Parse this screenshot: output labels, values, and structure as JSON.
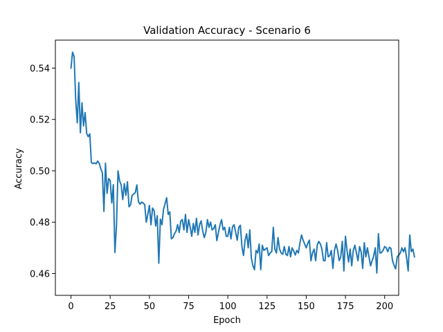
{
  "chart_data": {
    "type": "line",
    "title": "Validation Accuracy - Scenario 6",
    "xlabel": "Epoch",
    "ylabel": "Accuracy",
    "xlim": [
      -9.95,
      208.95
    ],
    "ylim": [
      0.4515,
      0.5509
    ],
    "xticks": [
      0,
      25,
      50,
      75,
      100,
      125,
      150,
      175,
      200
    ],
    "yticks": [
      0.46,
      0.48,
      0.5,
      0.52,
      0.54
    ],
    "ytick_labels": [
      "0.46",
      "0.48",
      "0.50",
      "0.52",
      "0.54"
    ],
    "grid": false,
    "line_color": "#1f77b4",
    "series": [
      {
        "x_start": 0,
        "x_step": 1,
        "values": [
          0.54,
          0.5462,
          0.5445,
          0.528,
          0.5187,
          0.5344,
          0.5148,
          0.5265,
          0.5175,
          0.5227,
          0.5146,
          0.5133,
          0.5144,
          0.5032,
          0.5028,
          0.5031,
          0.5027,
          0.5038,
          0.5029,
          0.5008,
          0.4993,
          0.4842,
          0.503,
          0.4912,
          0.497,
          0.4962,
          0.4875,
          0.4946,
          0.4682,
          0.4788,
          0.5,
          0.496,
          0.4945,
          0.4888,
          0.495,
          0.4905,
          0.4957,
          0.486,
          0.4868,
          0.4905,
          0.491,
          0.4915,
          0.4945,
          0.488,
          0.487,
          0.4878,
          0.4875,
          0.4868,
          0.48,
          0.483,
          0.4865,
          0.479,
          0.4855,
          0.4845,
          0.4785,
          0.4825,
          0.464,
          0.4812,
          0.479,
          0.485,
          0.4872,
          0.4895,
          0.483,
          0.484,
          0.4735,
          0.474,
          0.4755,
          0.4765,
          0.479,
          0.476,
          0.4805,
          0.481,
          0.477,
          0.483,
          0.476,
          0.481,
          0.478,
          0.4745,
          0.4795,
          0.476,
          0.4815,
          0.475,
          0.479,
          0.4805,
          0.4765,
          0.474,
          0.476,
          0.481,
          0.478,
          0.48,
          0.477,
          0.4775,
          0.479,
          0.4728,
          0.476,
          0.4788,
          0.481,
          0.477,
          0.478,
          0.4745,
          0.4745,
          0.478,
          0.4735,
          0.4782,
          0.479,
          0.476,
          0.473,
          0.478,
          0.4788,
          0.4705,
          0.467,
          0.473,
          0.4755,
          0.47,
          0.477,
          0.466,
          0.463,
          0.4615,
          0.469,
          0.468,
          0.4715,
          0.4615,
          0.471,
          0.469,
          0.4695,
          0.47,
          0.467,
          0.468,
          0.4685,
          0.478,
          0.4695,
          0.468,
          0.474,
          0.4695,
          0.468,
          0.4675,
          0.4705,
          0.4675,
          0.467,
          0.4705,
          0.4665,
          0.47,
          0.4688,
          0.4672,
          0.469,
          0.468,
          0.472,
          0.475,
          0.473,
          0.4715,
          0.47,
          0.4718,
          0.473,
          0.465,
          0.468,
          0.4695,
          0.465,
          0.471,
          0.4725,
          0.4715,
          0.4695,
          0.465,
          0.465,
          0.472,
          0.4665,
          0.467,
          0.469,
          0.462,
          0.469,
          0.4715,
          0.469,
          0.465,
          0.4665,
          0.4725,
          0.461,
          0.4745,
          0.469,
          0.4645,
          0.4695,
          0.463,
          0.469,
          0.471,
          0.468,
          0.465,
          0.4705,
          0.4685,
          0.462,
          0.472,
          0.4665,
          0.47,
          0.4665,
          0.463,
          0.465,
          0.4668,
          0.47,
          0.4602,
          0.4755,
          0.468,
          0.4682,
          0.469,
          0.4705,
          0.47,
          0.4685,
          0.4702,
          0.4698,
          0.465,
          0.4632,
          0.4618,
          0.4665,
          0.4672,
          0.468,
          0.47,
          0.4685,
          0.47,
          0.466,
          0.461,
          0.475,
          0.4685,
          0.4695,
          0.4665
        ]
      }
    ]
  }
}
